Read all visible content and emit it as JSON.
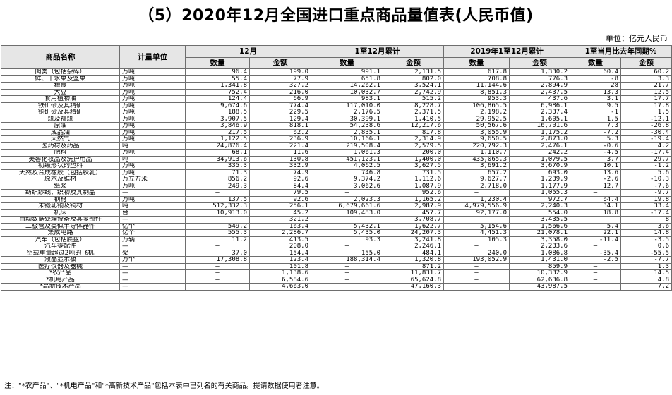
{
  "title": "（5）2020年12月全国进口重点商品量值表(人民币值)",
  "unit_label": "单位：亿元人民币",
  "headers": {
    "name": "商品名称",
    "unit": "计量单位",
    "groups": [
      "12月",
      "1至12月累计",
      "2019年1至12月累计",
      "1至当月比去年同期%"
    ],
    "sub": [
      "数量",
      "金额",
      "数量",
      "金额",
      "数量",
      "金额",
      "数量",
      "金额"
    ]
  },
  "rows": [
    [
      "肉类（包括杂碎）",
      "万吨",
      "96.4",
      "199.0",
      "991.1",
      "2,131.5",
      "617.8",
      "1,330.2",
      "60.4",
      "60.2"
    ],
    [
      "鲜、干水果及坚果",
      "万吨",
      "55.4",
      "77.9",
      "651.8",
      "802.0",
      "708.8",
      "776.3",
      "-8",
      "3.3"
    ],
    [
      "粮食",
      "万吨",
      "1,341.8",
      "327.2",
      "14,262.1",
      "3,524.1",
      "11,144.6",
      "2,894.9",
      "28",
      "21.7"
    ],
    [
      "大豆",
      "万吨",
      "752.4",
      "216.0",
      "10,032.7",
      "2,742.9",
      "8,851.3",
      "2,437.5",
      "13.3",
      "12.5"
    ],
    [
      "食用植物油",
      "万吨",
      "124.4",
      "66.9",
      "983.1",
      "515.2",
      "953.3",
      "437.6",
      "3.1",
      "17.7"
    ],
    [
      "铁矿砂及其精矿",
      "万吨",
      "9,674.6",
      "774.4",
      "117,010.0",
      "8,228.7",
      "106,865.5",
      "6,986.1",
      "9.5",
      "17.8"
    ],
    [
      "铜矿砂及其精矿",
      "万吨",
      "188.5",
      "229.5",
      "2,176.5",
      "2,371.5",
      "2,198.2",
      "2,337.4",
      "-1",
      "1.5"
    ],
    [
      "煤及褐煤",
      "万吨",
      "3,907.5",
      "129.4",
      "30,399.1",
      "1,410.5",
      "29,952.5",
      "1,605.1",
      "1.5",
      "-12.1"
    ],
    [
      "原油",
      "万吨",
      "3,846.9",
      "818.1",
      "54,238.6",
      "12,217.6",
      "50,567.6",
      "16,701.6",
      "7.3",
      "-26.8"
    ],
    [
      "成品油",
      "万吨",
      "217.5",
      "62.2",
      "2,835.1",
      "817.8",
      "3,055.9",
      "1,175.2",
      "-7.2",
      "-30.4"
    ],
    [
      "天然气",
      "万吨",
      "1,122.5",
      "236.9",
      "10,166.1",
      "2,314.9",
      "9,650.5",
      "2,873.0",
      "5.3",
      "-19.4"
    ],
    [
      "医药材及药品",
      "吨",
      "24,876.4",
      "221.4",
      "219,508.4",
      "2,579.5",
      "220,792.3",
      "2,476.1",
      "-0.6",
      "4.2"
    ],
    [
      "肥料",
      "万吨",
      "68.1",
      "11.6",
      "1,061.3",
      "200.0",
      "1,110.7",
      "242.2",
      "-4.5",
      "-17.4"
    ],
    [
      "美容化妆品及洗护用品",
      "吨",
      "34,913.6",
      "130.8",
      "451,123.1",
      "1,400.0",
      "435,065.3",
      "1,079.5",
      "3.7",
      "29.7"
    ],
    [
      "初级形状的塑料",
      "万吨",
      "335.3",
      "332.9",
      "4,062.5",
      "3,627.5",
      "3,691.2",
      "3,670.9",
      "10.1",
      "-1.2"
    ],
    [
      "天然及合成橡胶（包括胶乳）",
      "万吨",
      "71.3",
      "74.9",
      "746.8",
      "731.5",
      "657.2",
      "693.0",
      "13.6",
      "5.6"
    ],
    [
      "原木及锯材",
      "万立方米",
      "856.2",
      "92.6",
      "9,374.2",
      "1,112.6",
      "9,627.7",
      "1,239.9",
      "-2.6",
      "-10.3"
    ],
    [
      "纸浆",
      "万吨",
      "249.3",
      "84.4",
      "3,062.6",
      "1,087.9",
      "2,718.0",
      "1,177.9",
      "12.7",
      "-7.6"
    ],
    [
      "纺织纱线、织物及其制品",
      "—",
      "—",
      "79.5",
      "—",
      "952.6",
      "—",
      "1,055.3",
      "—",
      "-9.7"
    ],
    [
      "钢材",
      "万吨",
      "137.5",
      "92.6",
      "2,023.3",
      "1,165.2",
      "1,230.4",
      "972.7",
      "64.4",
      "19.8"
    ],
    [
      "未锻轧铜及铜材",
      "吨",
      "512,332.3",
      "256.1",
      "6,679,661.6",
      "2,987.9",
      "4,979,556.9",
      "2,240.3",
      "34.1",
      "33.4"
    ],
    [
      "机床",
      "台",
      "10,913.0",
      "45.2",
      "109,483.0",
      "457.7",
      "92,177.0",
      "554.0",
      "18.8",
      "-17.4"
    ],
    [
      "自动数据处理设备及其零部件",
      "—",
      "—",
      "321.2",
      "—",
      "3,708.7",
      "—",
      "3,435.5",
      "—",
      "8"
    ],
    [
      "二极管及类似半导体器件",
      "亿个",
      "549.2",
      "163.4",
      "5,432.1",
      "1,622.7",
      "5,154.6",
      "1,566.6",
      "5.4",
      "3.6"
    ],
    [
      "集成电路",
      "亿个",
      "555.3",
      "2,286.7",
      "5,435.0",
      "24,207.3",
      "4,451.3",
      "21,078.1",
      "22.1",
      "14.8"
    ],
    [
      "汽车（包括底盘）",
      "万辆",
      "11.2",
      "413.5",
      "93.3",
      "3,241.8",
      "105.3",
      "3,358.0",
      "-11.4",
      "-3.5"
    ],
    [
      "汽车零配件",
      "—",
      "—",
      "208.0",
      "—",
      "2,246.1",
      "—",
      "2,233.6",
      "—",
      "0.6"
    ],
    [
      "空载重量超过2吨的飞机",
      "架",
      "37.0",
      "154.4",
      "155.0",
      "484.1",
      "240.0",
      "1,086.8",
      "-35.4",
      "-55.5"
    ],
    [
      "液晶显示板",
      "万个",
      "17,308.8",
      "123.4",
      "188,314.4",
      "1,320.8",
      "193,052.9",
      "1,431.0",
      "-2.5",
      "-7.7"
    ],
    [
      "医疗仪器及器械",
      "—",
      "—",
      "101.8",
      "—",
      "871.2",
      "—",
      "859.9",
      "—",
      "1.3"
    ],
    [
      "*农产品",
      "—",
      "—",
      "1,138.6",
      "—",
      "11,831.7",
      "—",
      "10,332.9",
      "—",
      "14.5"
    ],
    [
      "*机电产品",
      "—",
      "—",
      "6,584.6",
      "—",
      "65,624.8",
      "—",
      "62,636.8",
      "—",
      "4.8"
    ],
    [
      "*高新技术产品",
      "—",
      "—",
      "4,663.0",
      "—",
      "47,160.3",
      "—",
      "43,987.5",
      "—",
      "7.2"
    ]
  ],
  "note": "注：\"*农产品\"、\"*机电产品\"和\"*高新技术产品\"包括本表中已列名的有关商品。提请数据使用者注意。"
}
